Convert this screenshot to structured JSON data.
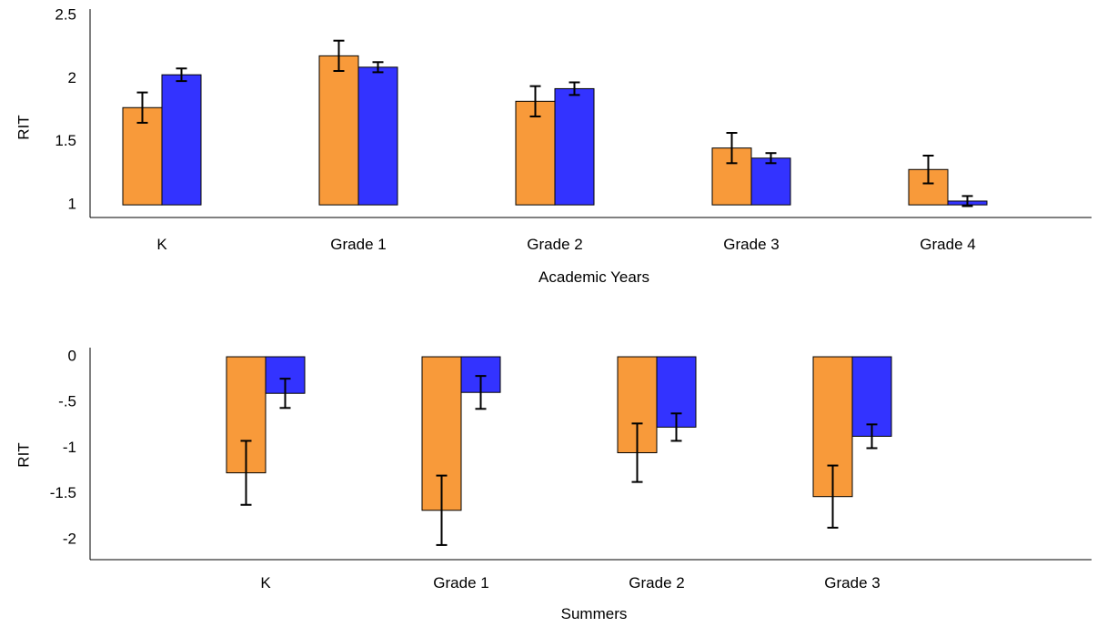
{
  "chart_data": [
    {
      "type": "bar",
      "title": "",
      "xlabel": "Academic Years",
      "ylabel": "RIT",
      "categories": [
        "K",
        "Grade 1",
        "Grade 2",
        "Grade 3",
        "Grade 4"
      ],
      "ylim": [
        0.9,
        2.55
      ],
      "bar_baseline": 1,
      "yticks": [
        1,
        1.5,
        2,
        2.5
      ],
      "ytick_labels": [
        "1",
        "1.5",
        "2",
        "2.5"
      ],
      "grid": false,
      "series": [
        {
          "color": "#F89A3A",
          "values": [
            1.77,
            2.18,
            1.82,
            1.45,
            1.28
          ],
          "errors": [
            0.12,
            0.12,
            0.12,
            0.12,
            0.11
          ]
        },
        {
          "color": "#3333FF",
          "values": [
            2.03,
            2.09,
            1.92,
            1.37,
            1.03
          ],
          "errors": [
            0.05,
            0.04,
            0.05,
            0.04,
            0.04
          ]
        }
      ]
    },
    {
      "type": "bar",
      "title": "",
      "xlabel": "Summers",
      "ylabel": "RIT",
      "categories": [
        "K",
        "Grade 1",
        "Grade 2",
        "Grade 3"
      ],
      "ylim": [
        -2.22,
        0.1
      ],
      "bar_baseline": 0,
      "yticks": [
        0,
        -0.5,
        -1,
        -1.5,
        -2
      ],
      "ytick_labels": [
        "0",
        "-.5",
        "-1",
        "-1.5",
        "-2"
      ],
      "grid": false,
      "series": [
        {
          "color": "#F89A3A",
          "values": [
            -1.27,
            -1.68,
            -1.05,
            -1.53
          ],
          "errors": [
            0.35,
            0.38,
            0.32,
            0.34
          ]
        },
        {
          "color": "#3333FF",
          "values": [
            -0.4,
            -0.39,
            -0.77,
            -0.87
          ],
          "errors": [
            0.16,
            0.18,
            0.15,
            0.13
          ]
        }
      ]
    }
  ]
}
